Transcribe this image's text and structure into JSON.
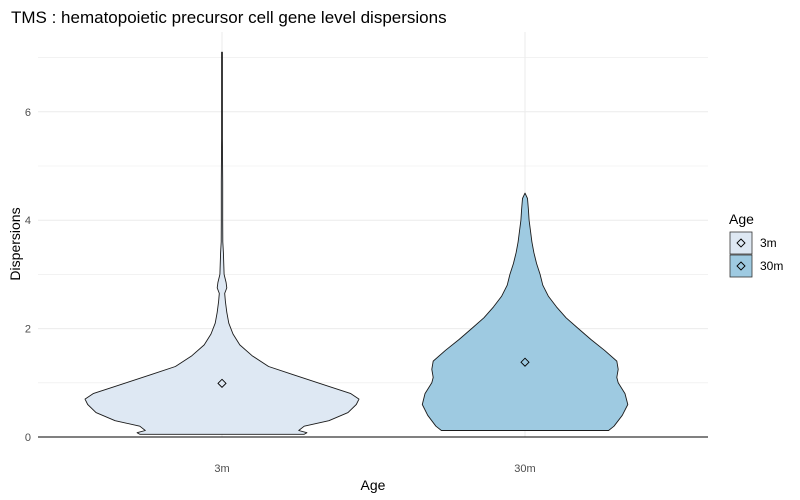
{
  "chart_data": {
    "type": "violin",
    "title": "TMS : hematopoietic precursor cell gene level dispersions",
    "xlabel": "Age",
    "ylabel": "Dispersions",
    "categories": [
      "3m",
      "30m"
    ],
    "ylim": [
      0,
      7.2
    ],
    "y_ticks": [
      "0",
      "2",
      "4",
      "6"
    ],
    "y_tick_values": [
      0,
      2,
      4,
      6
    ],
    "grid": true,
    "legend": {
      "title": "Age",
      "position": "right",
      "entries": [
        "3m",
        "30m"
      ]
    },
    "colors": {
      "3m": "#dee8f3",
      "30m": "#9ecae1",
      "outline": "#1a1a1a",
      "grid": "#ebebeb"
    },
    "series": [
      {
        "category": "3m",
        "mean": 0.99,
        "min": 0.05,
        "max": 7.1,
        "density_profile": [
          [
            0.05,
            0.6
          ],
          [
            0.08,
            0.62
          ],
          [
            0.12,
            0.56
          ],
          [
            0.2,
            0.6
          ],
          [
            0.3,
            0.78
          ],
          [
            0.45,
            0.92
          ],
          [
            0.6,
            0.98
          ],
          [
            0.7,
            1.0
          ],
          [
            0.8,
            0.94
          ],
          [
            0.9,
            0.82
          ],
          [
            1.0,
            0.7
          ],
          [
            1.15,
            0.52
          ],
          [
            1.3,
            0.34
          ],
          [
            1.5,
            0.22
          ],
          [
            1.7,
            0.13
          ],
          [
            1.9,
            0.08
          ],
          [
            2.1,
            0.05
          ],
          [
            2.3,
            0.035
          ],
          [
            2.5,
            0.025
          ],
          [
            2.65,
            0.02
          ],
          [
            2.75,
            0.035
          ],
          [
            2.85,
            0.03
          ],
          [
            3.0,
            0.015
          ],
          [
            3.4,
            0.01
          ],
          [
            3.6,
            0.006
          ],
          [
            4.0,
            0.005
          ],
          [
            4.7,
            0.005
          ],
          [
            5.5,
            0.003
          ],
          [
            7.1,
            0.003
          ]
        ]
      },
      {
        "category": "30m",
        "mean": 1.38,
        "min": 0.12,
        "max": 4.5,
        "density_profile": [
          [
            0.12,
            0.61
          ],
          [
            0.2,
            0.65
          ],
          [
            0.4,
            0.71
          ],
          [
            0.6,
            0.75
          ],
          [
            0.8,
            0.73
          ],
          [
            1.0,
            0.68
          ],
          [
            1.1,
            0.67
          ],
          [
            1.25,
            0.68
          ],
          [
            1.4,
            0.67
          ],
          [
            1.6,
            0.58
          ],
          [
            1.8,
            0.48
          ],
          [
            2.0,
            0.39
          ],
          [
            2.2,
            0.3
          ],
          [
            2.4,
            0.23
          ],
          [
            2.6,
            0.17
          ],
          [
            2.8,
            0.13
          ],
          [
            3.0,
            0.11
          ],
          [
            3.2,
            0.085
          ],
          [
            3.4,
            0.065
          ],
          [
            3.6,
            0.05
          ],
          [
            3.8,
            0.04
          ],
          [
            4.0,
            0.03
          ],
          [
            4.2,
            0.025
          ],
          [
            4.4,
            0.018
          ],
          [
            4.5,
            0.0
          ]
        ]
      }
    ]
  }
}
